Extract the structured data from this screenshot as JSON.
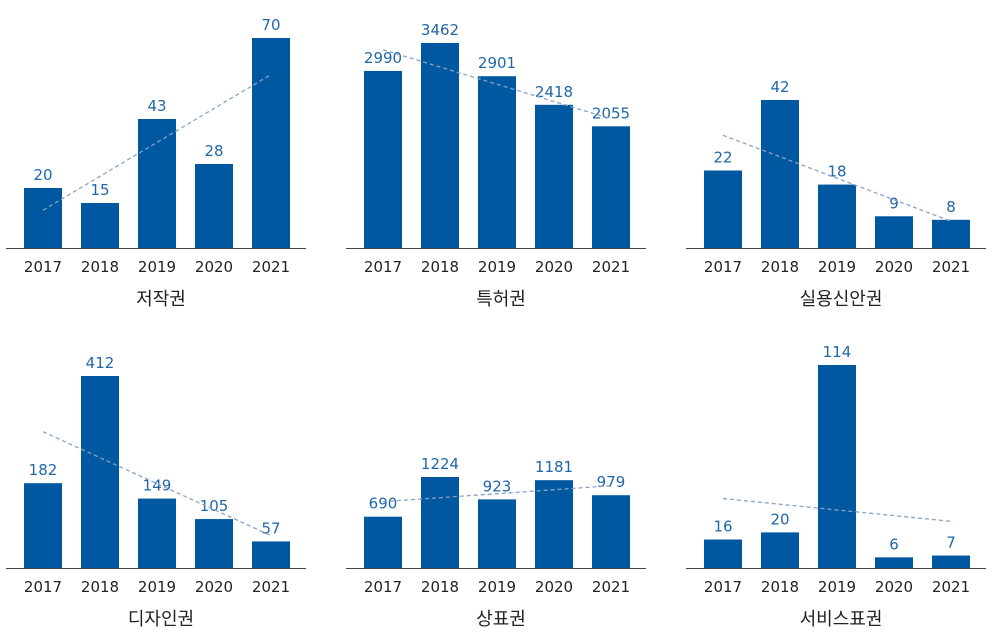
{
  "chart_data": [
    {
      "type": "bar",
      "title": "저작권",
      "categories": [
        "2017",
        "2018",
        "2019",
        "2020",
        "2021"
      ],
      "values": [
        20,
        15,
        43,
        28,
        70
      ],
      "trendline": true,
      "ylim": [
        0,
        70
      ]
    },
    {
      "type": "bar",
      "title": "특허권",
      "categories": [
        "2017",
        "2018",
        "2019",
        "2020",
        "2021"
      ],
      "values": [
        2990,
        3462,
        2901,
        2418,
        2055
      ],
      "trendline": true,
      "ylim": [
        0,
        3462
      ]
    },
    {
      "type": "bar",
      "title": "실용신안권",
      "categories": [
        "2017",
        "2018",
        "2019",
        "2020",
        "2021"
      ],
      "values": [
        22,
        42,
        18,
        9,
        8
      ],
      "trendline": true,
      "ylim": [
        0,
        42
      ]
    },
    {
      "type": "bar",
      "title": "디자인권",
      "categories": [
        "2017",
        "2018",
        "2019",
        "2020",
        "2021"
      ],
      "values": [
        182,
        412,
        149,
        105,
        57
      ],
      "trendline": true,
      "ylim": [
        0,
        412
      ]
    },
    {
      "type": "bar",
      "title": "상표권",
      "categories": [
        "2017",
        "2018",
        "2019",
        "2020",
        "2021"
      ],
      "values": [
        690,
        1224,
        923,
        1181,
        979
      ],
      "trendline": true,
      "ylim": [
        0,
        1224
      ]
    },
    {
      "type": "bar",
      "title": "서비스표권",
      "categories": [
        "2017",
        "2018",
        "2019",
        "2020",
        "2021"
      ],
      "values": [
        16,
        20,
        114,
        6,
        7
      ],
      "trendline": true,
      "ylim": [
        0,
        114
      ]
    }
  ],
  "colors": {
    "bar": "#0058a0",
    "label": "#1f67a8",
    "trend": "#8aa1c9"
  }
}
